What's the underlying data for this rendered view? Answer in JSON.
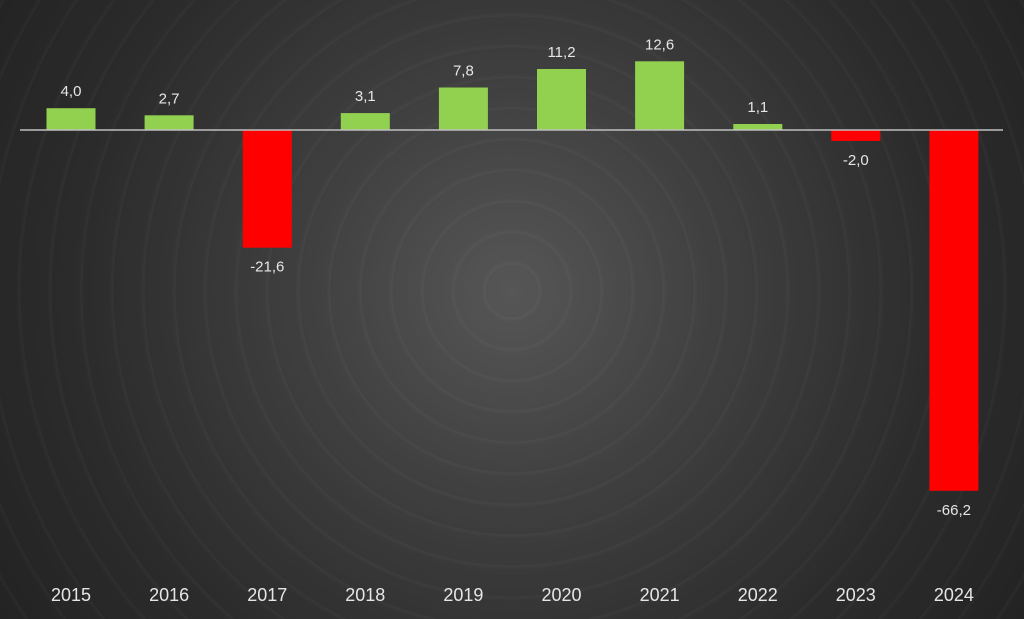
{
  "chart_data": {
    "type": "bar",
    "title": "",
    "xlabel": "",
    "ylabel": "",
    "categories": [
      "2015",
      "2016",
      "2017",
      "2018",
      "2019",
      "2020",
      "2021",
      "2022",
      "2023",
      "2024"
    ],
    "values": [
      4.0,
      2.7,
      -21.6,
      3.1,
      7.8,
      11.2,
      12.6,
      1.1,
      -2.0,
      -66.2
    ],
    "value_labels": [
      "4,0",
      "2,7",
      "-21,6",
      "3,1",
      "7,8",
      "11,2",
      "12,6",
      "1,1",
      "-2,0",
      "-66,2"
    ],
    "ylim": [
      -80,
      13
    ],
    "grid": false,
    "legend": "none",
    "colors": {
      "positive": "#92d050",
      "negative": "#ff0000",
      "baseline": "#bfbfbf"
    }
  }
}
